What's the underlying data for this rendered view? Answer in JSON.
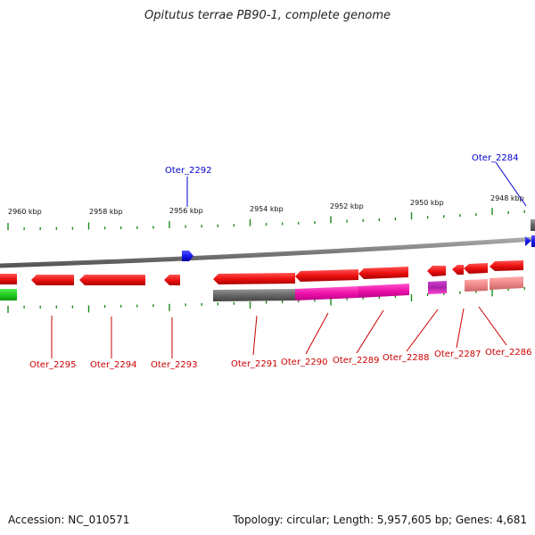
{
  "title": "Opitutus terrae PB90-1, complete genome",
  "footer": {
    "accession": "Accession: NC_010571",
    "summary": "Topology: circular; Length: 5,957,605 bp; Genes: 4,681"
  },
  "colors": {
    "background": "#ffffff",
    "backbone": "#7a7a7a",
    "tick": "#1a8a1a",
    "scale_text": "#111111",
    "gene_forward": "#1a1aee",
    "gene_reverse": "#ee1111",
    "label_reverse": "#cc0000",
    "label_forward": "#0000cc",
    "band_gray": "#666666",
    "band_magenta": "#ee11aa",
    "band_purple": "#aa22aa",
    "band_salmon": "#ee8888",
    "band_green": "#22cc22"
  },
  "scale_labels": [
    "2960 kbp",
    "2958 kbp",
    "2956 kbp",
    "2954 kbp",
    "2952 kbp",
    "2950 kbp",
    "2948 kbp"
  ],
  "gene_labels": [
    {
      "name": "Oter_2295",
      "strand": "reverse"
    },
    {
      "name": "Oter_2294",
      "strand": "reverse"
    },
    {
      "name": "Oter_2293",
      "strand": "reverse"
    },
    {
      "name": "Oter_2292",
      "strand": "forward"
    },
    {
      "name": "Oter_2291",
      "strand": "reverse"
    },
    {
      "name": "Oter_2290",
      "strand": "reverse"
    },
    {
      "name": "Oter_2289",
      "strand": "reverse"
    },
    {
      "name": "Oter_2288",
      "strand": "reverse"
    },
    {
      "name": "Oter_2287",
      "strand": "reverse"
    },
    {
      "name": "Oter_2286",
      "strand": "reverse"
    },
    {
      "name": "Oter_2284",
      "strand": "forward"
    }
  ]
}
